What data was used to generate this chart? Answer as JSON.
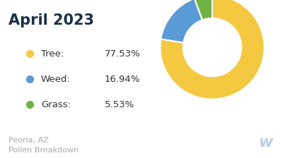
{
  "title": "April 2023",
  "title_color": "#1a2e4a",
  "subtitle_line1": "Peoria, AZ",
  "subtitle_line2": "Pollen Breakdown",
  "subtitle_color": "#aaaaaa",
  "labels": [
    "Tree",
    "Weed",
    "Grass"
  ],
  "values": [
    77.53,
    16.94,
    5.53
  ],
  "colors": [
    "#f5c842",
    "#5b9bd5",
    "#70b244"
  ],
  "legend_label_color": "#333333",
  "background_color": "#ffffff",
  "donut_width": 0.44,
  "start_angle": 90
}
